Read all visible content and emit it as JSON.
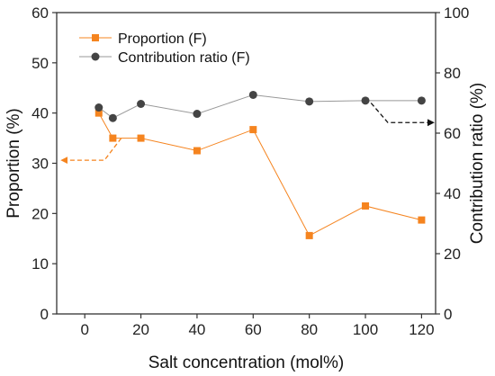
{
  "chart_data": {
    "type": "line",
    "xlabel": "Salt concentration (mol%)",
    "ylabel": "Proportion (%)",
    "y2label": "Contribution ratio (%)",
    "xlim": [
      -10,
      125
    ],
    "ylim": [
      0,
      60
    ],
    "y2lim": [
      0,
      100
    ],
    "xticks": [
      0,
      20,
      40,
      60,
      80,
      100,
      120
    ],
    "yticks": [
      0,
      10,
      20,
      30,
      40,
      50,
      60
    ],
    "y2ticks": [
      0,
      20,
      40,
      60,
      80,
      100
    ],
    "grid": false,
    "legend_position": "top-left",
    "series": [
      {
        "name": "Proportion (F)",
        "axis": "left",
        "marker": "square",
        "color": "#f5841f",
        "x": [
          5,
          10,
          20,
          40,
          60,
          80,
          100,
          120
        ],
        "y": [
          40.0,
          35.0,
          35.0,
          32.5,
          36.7,
          15.6,
          21.5,
          18.7
        ]
      },
      {
        "name": "Contribution ratio (F)",
        "axis": "right",
        "marker": "circle",
        "color": "#444444",
        "x": [
          5,
          10,
          20,
          40,
          60,
          80,
          100,
          120
        ],
        "y": [
          68.5,
          65.0,
          69.7,
          66.4,
          72.7,
          70.5,
          70.8,
          70.8
        ]
      }
    ],
    "annotations": [
      {
        "type": "arrow",
        "color": "#f5841f",
        "style": "dashed",
        "points_x": [
          13,
          7,
          7,
          -8
        ],
        "points_y": [
          35,
          30.6,
          30.6,
          30.6
        ],
        "meaning": "points to left axis"
      },
      {
        "type": "arrow",
        "color": "#111111",
        "style": "dashed",
        "points_x": [
          102,
          108,
          124
        ],
        "points_y": [
          70,
          63.5,
          63.5
        ],
        "meaning": "points to right axis"
      }
    ]
  }
}
